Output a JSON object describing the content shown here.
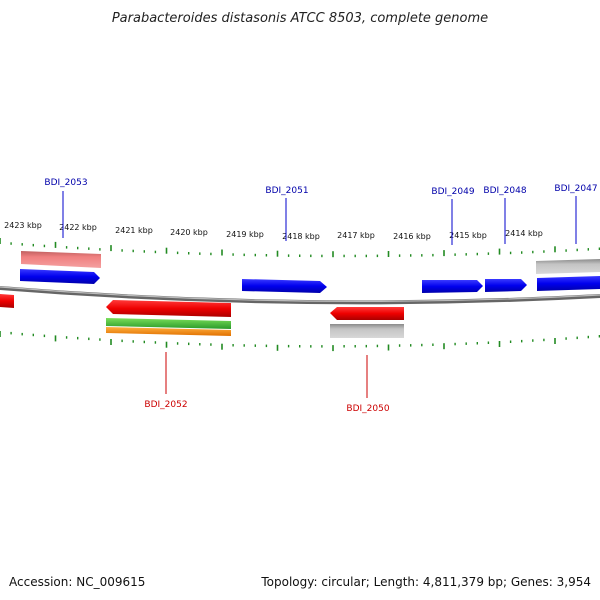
{
  "title": "Parabacteroides distasonis ATCC 8503, complete genome",
  "footer": {
    "accession": "Accession: NC_009615",
    "summary": "Topology: circular; Length: 4,811,379 bp; Genes: 3,954"
  },
  "colors": {
    "forward_cds": "#0000ee",
    "reverse_cds": "#ee0000",
    "forward_rna": "#f08080",
    "gray_feature": "#b8b8b8",
    "backbone": "#888888",
    "tick": "#228b22",
    "label_forward": "#0000aa",
    "label_reverse": "#cc0000"
  },
  "kbp_ticks": [
    {
      "label": "2423 kbp"
    },
    {
      "label": "2422 kbp"
    },
    {
      "label": "2421 kbp"
    },
    {
      "label": "2420 kbp"
    },
    {
      "label": "2419 kbp"
    },
    {
      "label": "2418 kbp"
    },
    {
      "label": "2417 kbp"
    },
    {
      "label": "2416 kbp"
    },
    {
      "label": "2415 kbp"
    },
    {
      "label": "2414 kbp"
    }
  ],
  "gene_labels": [
    {
      "name": "BDI_2053",
      "strand": "forward"
    },
    {
      "name": "BDI_2051",
      "strand": "forward"
    },
    {
      "name": "BDI_2049",
      "strand": "forward"
    },
    {
      "name": "BDI_2048",
      "strand": "forward"
    },
    {
      "name": "BDI_2047",
      "strand": "forward"
    },
    {
      "name": "BDI_2052",
      "strand": "reverse"
    },
    {
      "name": "BDI_2050",
      "strand": "reverse"
    }
  ]
}
